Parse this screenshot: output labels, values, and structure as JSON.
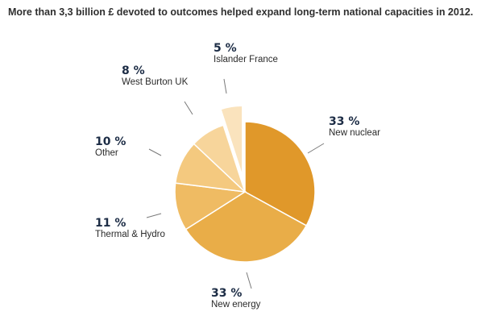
{
  "title": "More than 3,3 billion £ devoted to outcomes helped expand long-term national capacities in 2012.",
  "chart_data": {
    "type": "pie",
    "title": "More than 3,3 billion £ devoted to outcomes helped expand long-term national capacities in 2012.",
    "unit": "%",
    "slices": [
      {
        "label": "New nuclear",
        "value": 33,
        "display": "33 %",
        "color": "#e0982a"
      },
      {
        "label": "New energy",
        "value": 33,
        "display": "33 %",
        "color": "#e9ad48"
      },
      {
        "label": "Thermal & Hydro",
        "value": 11,
        "display": "11 %",
        "color": "#efbb63"
      },
      {
        "label": "Other",
        "value": 10,
        "display": "10 %",
        "color": "#f4c97f"
      },
      {
        "label": "West Burton UK",
        "value": 8,
        "display": "8 %",
        "color": "#f7d59b"
      },
      {
        "label": "Islander France",
        "value": 5,
        "display": "5 %",
        "color": "#fae3bd",
        "exploded": true
      }
    ]
  }
}
